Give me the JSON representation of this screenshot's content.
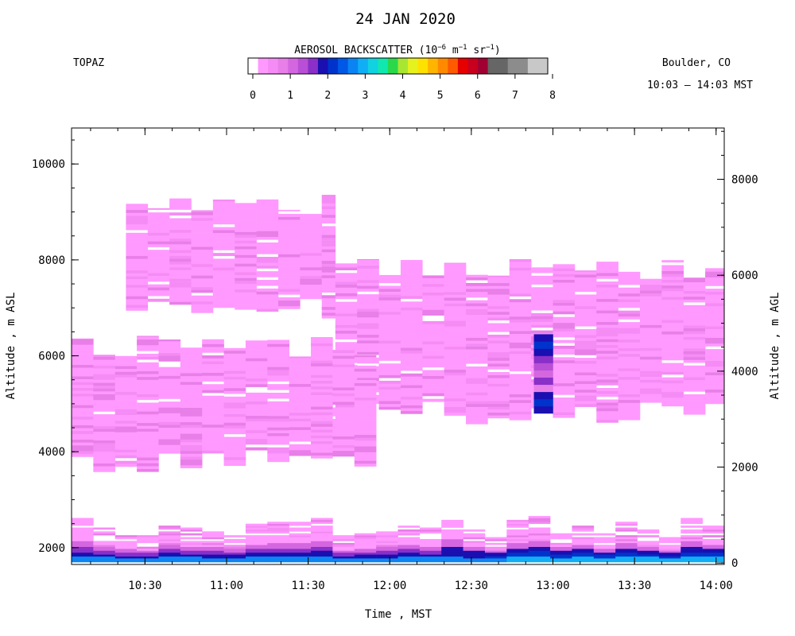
{
  "header": {
    "date": "24 JAN 2020",
    "instrument": "TOPAZ",
    "location": "Boulder, CO",
    "time_range": "10:03 – 14:03 MST"
  },
  "colorbar": {
    "title_main": "AEROSOL BACKSCATTER (10",
    "title_exp1": "−6",
    "title_mid1": " m",
    "title_exp2": "−1",
    "title_mid2": " sr",
    "title_exp3": "−1",
    "title_end": ")",
    "tick_labels": [
      "0",
      "1",
      "2",
      "3",
      "4",
      "5",
      "6",
      "7",
      "8"
    ],
    "colors": [
      "#ffffff",
      "#ff99ff",
      "#f58cf5",
      "#e87ee8",
      "#d466e0",
      "#b84fd6",
      "#8a2fc8",
      "#1a0fb0",
      "#0033cc",
      "#0058e6",
      "#0a84f2",
      "#10aef5",
      "#10d2e0",
      "#10e8b0",
      "#2ad84a",
      "#a8e632",
      "#e6f21e",
      "#ffe100",
      "#ffb400",
      "#ff8a00",
      "#ff5a00",
      "#e60000",
      "#c8001e",
      "#a00032",
      "#666666",
      "#666666",
      "#8c8c8c",
      "#8c8c8c",
      "#c8c8c8",
      "#c8c8c8"
    ]
  },
  "chart_data": {
    "type": "heatmap",
    "title": "24 JAN 2020",
    "xlabel": "Time , MST",
    "ylabel": "Altitude , m ASL",
    "ylabel_right": "Altitude , m AGL",
    "x_ticks": [
      "10:30",
      "11:00",
      "11:30",
      "12:00",
      "12:30",
      "13:00",
      "13:30",
      "14:00"
    ],
    "y_ticks_left": [
      "2000",
      "4000",
      "6000",
      "8000",
      "10000"
    ],
    "y_ticks_right": [
      "0",
      "2000",
      "4000",
      "6000",
      "8000"
    ],
    "xlim": [
      "10:03",
      "14:03"
    ],
    "ylim": [
      1650,
      10750
    ],
    "color_scale": [
      0,
      8
    ],
    "layers": [
      {
        "name": "upper aerosol layer",
        "t_start": "10:23",
        "t_end": "11:40",
        "base": 6950,
        "top": 9450,
        "backscatter": 0.3
      },
      {
        "name": "upper aerosol layer",
        "t_start": "11:40",
        "t_end": "14:03",
        "base": 4800,
        "top": 8050,
        "backscatter": 0.3
      },
      {
        "name": "mid aerosol layer",
        "t_start": "10:03",
        "t_end": "11:55",
        "base": 3800,
        "top": 6450,
        "backscatter": 0.3
      },
      {
        "name": "dense plume",
        "t_start": "12:53",
        "t_end": "13:00",
        "base": 4800,
        "top": 6350,
        "backscatter": 1.2
      },
      {
        "name": "boundary layer",
        "t_start": "10:03",
        "t_end": "14:03",
        "base": 1700,
        "top": 2600,
        "backscatter": 0.8
      }
    ]
  }
}
